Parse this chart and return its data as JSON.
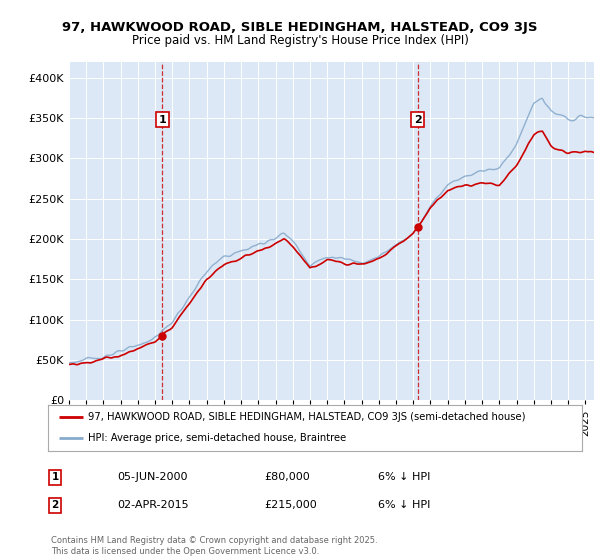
{
  "title": "97, HAWKWOOD ROAD, SIBLE HEDINGHAM, HALSTEAD, CO9 3JS",
  "subtitle": "Price paid vs. HM Land Registry's House Price Index (HPI)",
  "legend_label_red": "97, HAWKWOOD ROAD, SIBLE HEDINGHAM, HALSTEAD, CO9 3JS (semi-detached house)",
  "legend_label_blue": "HPI: Average price, semi-detached house, Braintree",
  "annotation1": {
    "label": "1",
    "date": "05-JUN-2000",
    "price": "£80,000",
    "note": "6% ↓ HPI"
  },
  "annotation2": {
    "label": "2",
    "date": "02-APR-2015",
    "price": "£215,000",
    "note": "6% ↓ HPI"
  },
  "footnote": "Contains HM Land Registry data © Crown copyright and database right 2025.\nThis data is licensed under the Open Government Licence v3.0.",
  "color_red": "#cc0000",
  "color_blue": "#88aacc",
  "background_color": "#dce8f5",
  "grid_color": "#ffffff",
  "ylim": [
    0,
    420000
  ],
  "yticks": [
    0,
    50000,
    100000,
    150000,
    200000,
    250000,
    300000,
    350000,
    400000
  ],
  "ytick_labels": [
    "£0",
    "£50K",
    "£100K",
    "£150K",
    "£200K",
    "£250K",
    "£300K",
    "£350K",
    "£400K"
  ],
  "sale1_x": 2000.42,
  "sale1_y": 80000,
  "sale2_x": 2015.25,
  "sale2_y": 215000,
  "xmin": 1995,
  "xmax": 2025.5
}
